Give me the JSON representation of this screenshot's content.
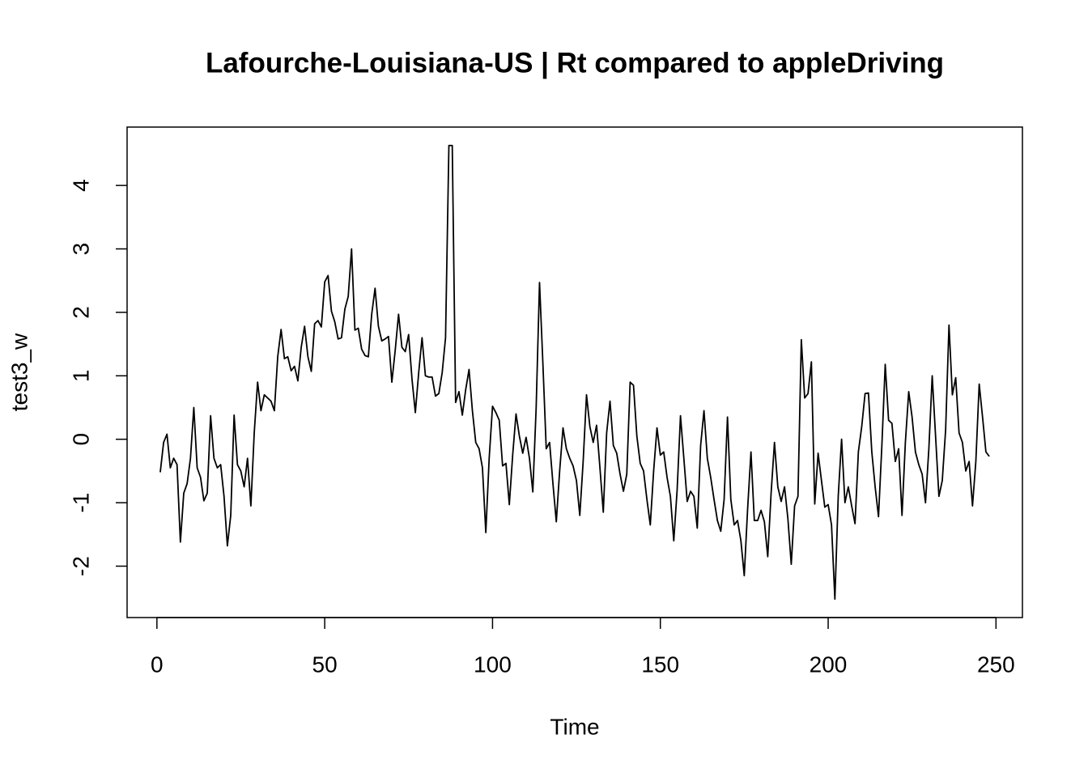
{
  "chart_data": {
    "type": "line",
    "title": "Lafourche-Louisiana-US | Rt compared to appleDriving",
    "xlabel": "Time",
    "ylabel": "test3_w",
    "color": "#000000",
    "x": [
      1,
      2,
      3,
      4,
      5,
      6,
      7,
      8,
      9,
      10,
      11,
      12,
      13,
      14,
      15,
      16,
      17,
      18,
      19,
      20,
      21,
      22,
      23,
      24,
      25,
      26,
      27,
      28,
      29,
      30,
      31,
      32,
      33,
      34,
      35,
      36,
      37,
      38,
      39,
      40,
      41,
      42,
      43,
      44,
      45,
      46,
      47,
      48,
      49,
      50,
      51,
      52,
      53,
      54,
      55,
      56,
      57,
      58,
      59,
      60,
      61,
      62,
      63,
      64,
      65,
      66,
      67,
      68,
      69,
      70,
      71,
      72,
      73,
      74,
      75,
      76,
      77,
      78,
      79,
      80,
      81,
      82,
      83,
      84,
      85,
      86,
      87,
      88,
      89,
      90,
      91,
      92,
      93,
      94,
      95,
      96,
      97,
      98,
      99,
      100,
      101,
      102,
      103,
      104,
      105,
      106,
      107,
      108,
      109,
      110,
      111,
      112,
      113,
      114,
      115,
      116,
      117,
      118,
      119,
      120,
      121,
      122,
      123,
      124,
      125,
      126,
      127,
      128,
      129,
      130,
      131,
      132,
      133,
      134,
      135,
      136,
      137,
      138,
      139,
      140,
      141,
      142,
      143,
      144,
      145,
      146,
      147,
      148,
      149,
      150,
      151,
      152,
      153,
      154,
      155,
      156,
      157,
      158,
      159,
      160,
      161,
      162,
      163,
      164,
      165,
      166,
      167,
      168,
      169,
      170,
      171,
      172,
      173,
      174,
      175,
      176,
      177,
      178,
      179,
      180,
      181,
      182,
      183,
      184,
      185,
      186,
      187,
      188,
      189,
      190,
      191,
      192,
      193,
      194,
      195,
      196,
      197,
      198,
      199,
      200,
      201,
      202,
      203,
      204,
      205,
      206,
      207,
      208,
      209,
      210,
      211,
      212,
      213,
      214,
      215,
      216,
      217,
      218,
      219,
      220,
      221,
      222,
      223,
      224,
      225,
      226,
      227,
      228,
      229,
      230,
      231,
      232,
      233,
      234,
      235,
      236,
      237,
      238,
      239,
      240,
      241,
      242,
      243,
      244,
      245,
      246,
      247,
      248
    ],
    "values": [
      -0.52,
      -0.05,
      0.08,
      -0.45,
      -0.3,
      -0.4,
      -1.62,
      -0.85,
      -0.7,
      -0.3,
      0.5,
      -0.45,
      -0.6,
      -0.97,
      -0.85,
      0.37,
      -0.3,
      -0.45,
      -0.4,
      -0.9,
      -1.68,
      -1.2,
      0.38,
      -0.4,
      -0.5,
      -0.75,
      -0.3,
      -1.05,
      0.1,
      0.9,
      0.45,
      0.7,
      0.65,
      0.6,
      0.45,
      1.3,
      1.73,
      1.27,
      1.3,
      1.08,
      1.15,
      0.92,
      1.45,
      1.78,
      1.3,
      1.07,
      1.82,
      1.87,
      1.77,
      2.48,
      2.58,
      2.02,
      1.85,
      1.58,
      1.6,
      2.05,
      2.25,
      3.0,
      1.72,
      1.75,
      1.42,
      1.32,
      1.3,
      1.97,
      2.38,
      1.78,
      1.55,
      1.58,
      1.62,
      0.9,
      1.4,
      1.97,
      1.45,
      1.38,
      1.65,
      0.95,
      0.42,
      1.05,
      1.6,
      1.0,
      0.98,
      0.98,
      0.68,
      0.72,
      1.05,
      1.6,
      4.63,
      4.63,
      0.58,
      0.75,
      0.38,
      0.78,
      1.1,
      0.45,
      -0.05,
      -0.15,
      -0.45,
      -1.47,
      -0.3,
      0.52,
      0.42,
      0.3,
      -0.42,
      -0.38,
      -1.03,
      -0.25,
      0.4,
      0.05,
      -0.22,
      0.03,
      -0.3,
      -0.83,
      0.5,
      2.47,
      1.2,
      -0.15,
      -0.05,
      -0.7,
      -1.3,
      -0.5,
      0.18,
      -0.15,
      -0.3,
      -0.42,
      -0.65,
      -1.2,
      -0.35,
      0.7,
      0.2,
      -0.05,
      0.22,
      -0.45,
      -1.15,
      0.1,
      0.6,
      -0.1,
      -0.22,
      -0.55,
      -0.82,
      -0.55,
      0.9,
      0.85,
      0.05,
      -0.38,
      -0.5,
      -0.95,
      -1.35,
      -0.5,
      0.18,
      -0.25,
      -0.2,
      -0.6,
      -0.9,
      -1.6,
      -0.8,
      0.37,
      -0.3,
      -0.98,
      -0.82,
      -0.9,
      -1.4,
      -0.1,
      0.45,
      -0.3,
      -0.6,
      -0.95,
      -1.28,
      -1.45,
      -0.95,
      0.35,
      -0.95,
      -1.35,
      -1.28,
      -1.6,
      -2.15,
      -1.1,
      -0.2,
      -1.28,
      -1.28,
      -1.12,
      -1.3,
      -1.85,
      -0.85,
      -0.05,
      -0.75,
      -0.98,
      -0.75,
      -1.25,
      -1.97,
      -1.05,
      -0.9,
      1.57,
      0.65,
      0.72,
      1.22,
      -1.02,
      -0.22,
      -0.65,
      -1.07,
      -1.03,
      -1.35,
      -2.52,
      -0.9,
      0.0,
      -1.0,
      -0.75,
      -1.05,
      -1.33,
      -0.2,
      0.2,
      0.72,
      0.73,
      -0.2,
      -0.75,
      -1.22,
      -0.1,
      1.18,
      0.3,
      0.25,
      -0.35,
      -0.15,
      -1.2,
      -0.05,
      0.75,
      0.35,
      -0.2,
      -0.4,
      -0.55,
      -1.0,
      -0.15,
      1.0,
      0.05,
      -0.9,
      -0.65,
      0.15,
      1.8,
      0.7,
      0.97,
      0.1,
      -0.05,
      -0.5,
      -0.35,
      -1.05,
      -0.35,
      0.87,
      0.35,
      -0.2,
      -0.27
    ],
    "xlim": [
      -8.88,
      257.88
    ],
    "xticks": [
      0,
      50,
      100,
      150,
      200,
      250
    ],
    "ylim": [
      -2.81,
      4.92
    ],
    "yticks": [
      -2,
      -1,
      0,
      1,
      2,
      3,
      4
    ]
  }
}
